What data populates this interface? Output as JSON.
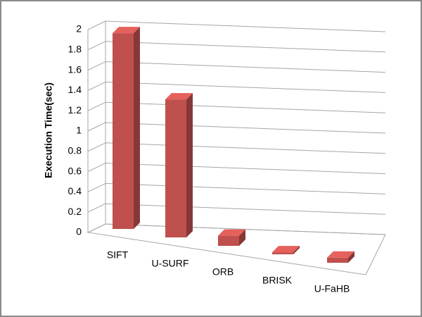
{
  "chart_data": {
    "type": "bar3d",
    "y_label": "Execution Time(sec)",
    "categories": [
      "SIFT",
      "U-SURF",
      "ORB",
      "BRISK",
      "U-FaHB"
    ],
    "values": [
      1.93,
      1.36,
      0.1,
      0.02,
      0.05
    ],
    "color": "#c0504d",
    "ylim": [
      0,
      2
    ],
    "yticks": [
      0,
      0.2,
      0.4,
      0.6,
      0.8,
      1,
      1.2,
      1.4,
      1.6,
      1.8,
      2
    ],
    "grid": true
  }
}
